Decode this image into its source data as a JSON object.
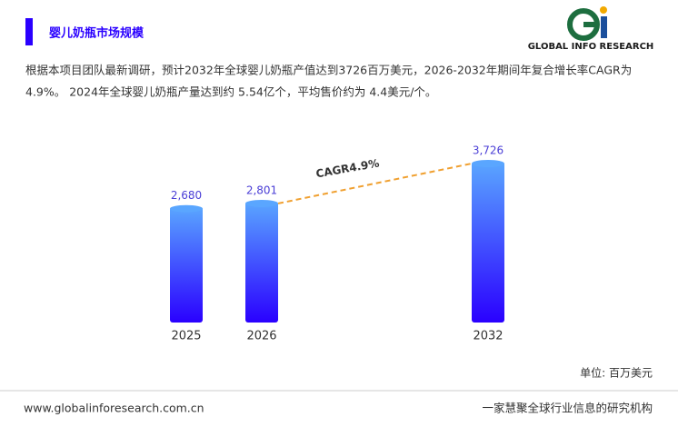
{
  "header": {
    "title": "婴儿奶瓶市场规模",
    "logo_text": "GLOBAL INFO RESEARCH"
  },
  "description": [
    "根据本项目团队最新调研，预计2032年全球婴儿奶瓶产值达到3726百万美元，2026-2032年期间年复合增长率CAGR为",
    "4.9%。 2024年全球婴儿奶瓶产量达到约 5.54亿个，平均售价约为 4.4美元/个。"
  ],
  "chart_data": {
    "type": "bar",
    "categories": [
      "2025",
      "2026",
      "2032"
    ],
    "values": [
      2680,
      2801,
      3726
    ],
    "value_labels": [
      "2,680",
      "2,801",
      "3,726"
    ],
    "color_top": "#5aa6ff",
    "color_bottom": "#2a00ff",
    "annotation": "CAGR4.9%",
    "unit": "单位: 百万美元"
  },
  "footer": {
    "website": "www.globalinforesearch.com.cn",
    "slogan": "一家慧聚全球行业信息的研究机构"
  }
}
